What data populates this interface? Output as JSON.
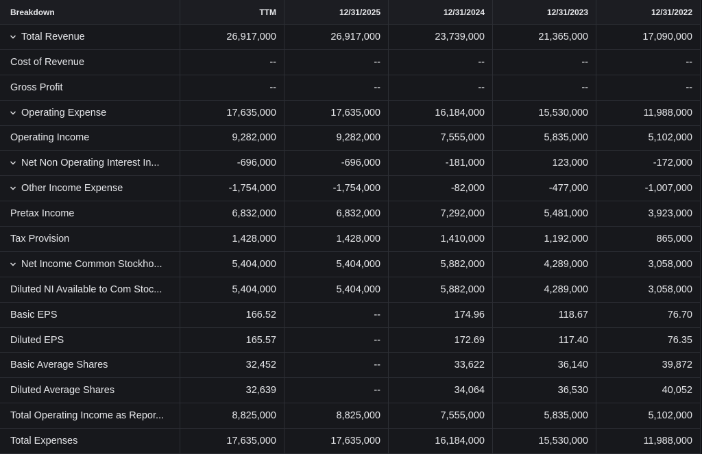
{
  "table": {
    "header": [
      "Breakdown",
      "TTM",
      "12/31/2025",
      "12/31/2024",
      "12/31/2023",
      "12/31/2022"
    ],
    "rows": [
      {
        "label": "Total Revenue",
        "expandable": true,
        "cells": [
          "26,917,000",
          "26,917,000",
          "23,739,000",
          "21,365,000",
          "17,090,000"
        ]
      },
      {
        "label": "Cost of Revenue",
        "expandable": false,
        "cells": [
          "--",
          "--",
          "--",
          "--",
          "--"
        ]
      },
      {
        "label": "Gross Profit",
        "expandable": false,
        "cells": [
          "--",
          "--",
          "--",
          "--",
          "--"
        ]
      },
      {
        "label": "Operating Expense",
        "expandable": true,
        "cells": [
          "17,635,000",
          "17,635,000",
          "16,184,000",
          "15,530,000",
          "11,988,000"
        ]
      },
      {
        "label": "Operating Income",
        "expandable": false,
        "cells": [
          "9,282,000",
          "9,282,000",
          "7,555,000",
          "5,835,000",
          "5,102,000"
        ]
      },
      {
        "label": "Net Non Operating Interest In...",
        "expandable": true,
        "cells": [
          "-696,000",
          "-696,000",
          "-181,000",
          "123,000",
          "-172,000"
        ]
      },
      {
        "label": "Other Income Expense",
        "expandable": true,
        "cells": [
          "-1,754,000",
          "-1,754,000",
          "-82,000",
          "-477,000",
          "-1,007,000"
        ]
      },
      {
        "label": "Pretax Income",
        "expandable": false,
        "cells": [
          "6,832,000",
          "6,832,000",
          "7,292,000",
          "5,481,000",
          "3,923,000"
        ]
      },
      {
        "label": "Tax Provision",
        "expandable": false,
        "cells": [
          "1,428,000",
          "1,428,000",
          "1,410,000",
          "1,192,000",
          "865,000"
        ]
      },
      {
        "label": "Net Income Common Stockho...",
        "expandable": true,
        "cells": [
          "5,404,000",
          "5,404,000",
          "5,882,000",
          "4,289,000",
          "3,058,000"
        ]
      },
      {
        "label": "Diluted NI Available to Com Stoc...",
        "expandable": false,
        "cells": [
          "5,404,000",
          "5,404,000",
          "5,882,000",
          "4,289,000",
          "3,058,000"
        ]
      },
      {
        "label": "Basic EPS",
        "expandable": false,
        "cells": [
          "166.52",
          "--",
          "174.96",
          "118.67",
          "76.70"
        ]
      },
      {
        "label": "Diluted EPS",
        "expandable": false,
        "cells": [
          "165.57",
          "--",
          "172.69",
          "117.40",
          "76.35"
        ]
      },
      {
        "label": "Basic Average Shares",
        "expandable": false,
        "cells": [
          "32,452",
          "--",
          "33,622",
          "36,140",
          "39,872"
        ]
      },
      {
        "label": "Diluted Average Shares",
        "expandable": false,
        "cells": [
          "32,639",
          "--",
          "34,064",
          "36,530",
          "40,052"
        ]
      },
      {
        "label": "Total Operating Income as Repor...",
        "expandable": false,
        "cells": [
          "8,825,000",
          "8,825,000",
          "7,555,000",
          "5,835,000",
          "5,102,000"
        ]
      },
      {
        "label": "Total Expenses",
        "expandable": false,
        "cells": [
          "17,635,000",
          "17,635,000",
          "16,184,000",
          "15,530,000",
          "11,988,000"
        ]
      }
    ]
  }
}
